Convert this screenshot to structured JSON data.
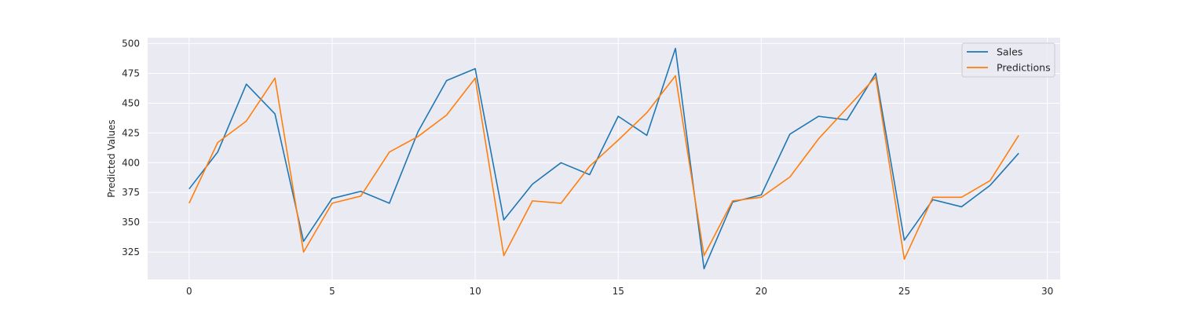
{
  "chart_data": {
    "type": "line",
    "title": "",
    "xlabel": "",
    "ylabel": "Predicted Values",
    "xlim": [
      -1.45,
      30.45
    ],
    "ylim": [
      302,
      505
    ],
    "x_ticks": [
      0,
      5,
      10,
      15,
      20,
      25,
      30
    ],
    "y_ticks": [
      325,
      350,
      375,
      400,
      425,
      450,
      475,
      500
    ],
    "grid": true,
    "legend_position": "top-right",
    "x": [
      0,
      1,
      2,
      3,
      4,
      5,
      6,
      7,
      8,
      9,
      10,
      11,
      12,
      13,
      14,
      15,
      16,
      17,
      18,
      19,
      20,
      21,
      22,
      23,
      24,
      25,
      26,
      27,
      28,
      29
    ],
    "series": [
      {
        "name": "Sales",
        "color": "#1f77b4",
        "values": [
          378,
          409,
          466,
          441,
          334,
          370,
          376,
          366,
          426,
          469,
          479,
          352,
          382,
          400,
          390,
          439,
          423,
          496,
          311,
          367,
          373,
          424,
          439,
          436,
          475,
          335,
          369,
          363,
          381,
          408
        ]
      },
      {
        "name": "Predictions",
        "color": "#ff7f0e",
        "values": [
          366,
          417,
          435,
          471,
          325,
          366,
          372,
          409,
          422,
          440,
          471,
          322,
          368,
          366,
          397,
          419,
          442,
          473,
          322,
          368,
          371,
          388,
          420,
          446,
          472,
          319,
          371,
          371,
          385,
          423
        ]
      }
    ]
  }
}
